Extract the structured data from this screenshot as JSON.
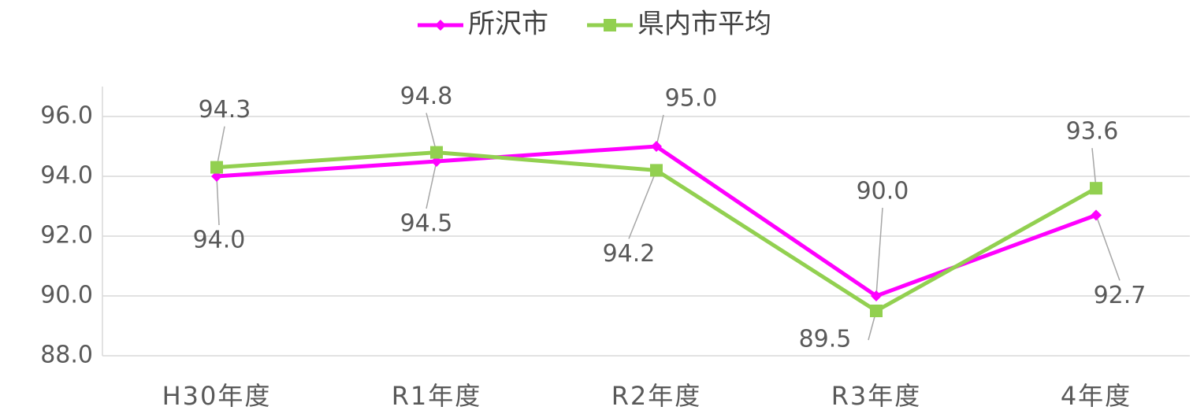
{
  "chart_data": {
    "type": "line",
    "categories": [
      "H30年度",
      "R1年度",
      "R2年度",
      "R3年度",
      "4年度"
    ],
    "series": [
      {
        "name": "所沢市",
        "color": "#ff00ff",
        "marker": "diamond",
        "values": [
          94.0,
          94.5,
          95.0,
          90.0,
          92.7
        ],
        "value_labels": [
          "94.0",
          "94.5",
          "95.0",
          "90.0",
          "92.7"
        ]
      },
      {
        "name": "県内市平均",
        "color": "#92d050",
        "marker": "square",
        "values": [
          94.3,
          94.8,
          94.2,
          89.5,
          93.6
        ],
        "value_labels": [
          "94.3",
          "94.8",
          "94.2",
          "89.5",
          "93.6"
        ]
      }
    ],
    "ylim": [
      88,
      97
    ],
    "yticks": [
      {
        "value": 88,
        "label": "88.0"
      },
      {
        "value": 90,
        "label": "90.0"
      },
      {
        "value": 92,
        "label": "92.0"
      },
      {
        "value": 94,
        "label": "94.0"
      },
      {
        "value": 96,
        "label": "96.0"
      }
    ],
    "grid": true,
    "legend": "top"
  }
}
